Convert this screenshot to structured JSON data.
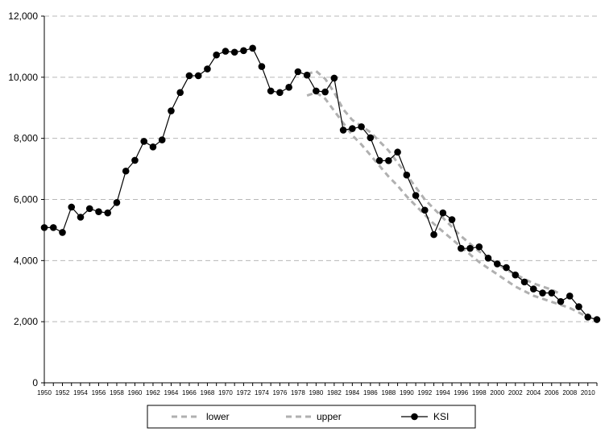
{
  "chart_data": {
    "type": "line",
    "grid": "horizontal-dashed",
    "legend_position": "bottom",
    "ylim": [
      0,
      12000
    ],
    "y_ticks": [
      0,
      2000,
      4000,
      6000,
      8000,
      10000,
      12000
    ],
    "y_tick_labels": [
      "0",
      "2,000",
      "4,000",
      "6,000",
      "8,000",
      "10,000",
      "12,000"
    ],
    "xlim": [
      1950,
      2011
    ],
    "x_tick_labels": [
      "1950",
      "1952",
      "1954",
      "1956",
      "1958",
      "1960",
      "1962",
      "1964",
      "1966",
      "1968",
      "1970",
      "1972",
      "1974",
      "1976",
      "1978",
      "1980",
      "1982",
      "1984",
      "1986",
      "1988",
      "1990",
      "1992",
      "1994",
      "1996",
      "1998",
      "2000",
      "2002",
      "2004",
      "2006",
      "2008",
      "2010"
    ],
    "series": [
      {
        "name": "lower",
        "style": "dashed",
        "color": "#b0b0b0",
        "x": [
          1979,
          1980,
          1981,
          1982,
          1983,
          1984,
          1985,
          1986,
          1987,
          1988,
          1989,
          1990,
          1991,
          1992,
          1993,
          1994,
          1995,
          1996,
          1997,
          1998,
          1999,
          2000,
          2001,
          2002,
          2003,
          2004,
          2005,
          2006,
          2007,
          2008,
          2009,
          2010
        ],
        "values": [
          9400,
          9500,
          9300,
          8900,
          8500,
          8100,
          7800,
          7450,
          7100,
          6750,
          6450,
          6100,
          5800,
          5500,
          5200,
          4950,
          4700,
          4450,
          4200,
          3950,
          3750,
          3550,
          3350,
          3150,
          3000,
          2850,
          2750,
          2650,
          2550,
          2450,
          2300,
          2150
        ]
      },
      {
        "name": "upper",
        "style": "dashed",
        "color": "#b0b0b0",
        "x": [
          1979,
          1980,
          1981,
          1982,
          1983,
          1984,
          1985,
          1986,
          1987,
          1988,
          1989,
          1990,
          1991,
          1992,
          1993,
          1994,
          1995,
          1996,
          1997,
          1998,
          1999,
          2000,
          2001,
          2002,
          2003,
          2004,
          2005,
          2006,
          2007
        ],
        "values": [
          10100,
          10200,
          9950,
          9500,
          8950,
          8600,
          8400,
          8200,
          7900,
          7600,
          7200,
          6800,
          6400,
          6000,
          5700,
          5400,
          5100,
          4800,
          4550,
          4300,
          4100,
          3900,
          3700,
          3550,
          3400,
          3250,
          3150,
          3050,
          2900
        ]
      },
      {
        "name": "KSI",
        "style": "solid-markers",
        "color": "#000000",
        "x": [
          1950,
          1951,
          1952,
          1953,
          1954,
          1955,
          1956,
          1957,
          1958,
          1959,
          1960,
          1961,
          1962,
          1963,
          1964,
          1965,
          1966,
          1967,
          1968,
          1969,
          1970,
          1971,
          1972,
          1973,
          1974,
          1975,
          1976,
          1977,
          1978,
          1979,
          1980,
          1981,
          1982,
          1983,
          1984,
          1985,
          1986,
          1987,
          1988,
          1989,
          1990,
          1991,
          1992,
          1993,
          1994,
          1995,
          1996,
          1997,
          1998,
          1999,
          2000,
          2001,
          2002,
          2003,
          2004,
          2005,
          2006,
          2007,
          2008,
          2009,
          2010,
          2011
        ],
        "values": [
          5080,
          5080,
          4920,
          5750,
          5420,
          5700,
          5600,
          5560,
          5900,
          6930,
          7280,
          7900,
          7720,
          7950,
          8900,
          9500,
          10050,
          10050,
          10270,
          10730,
          10850,
          10820,
          10870,
          10950,
          10350,
          9550,
          9500,
          9670,
          10180,
          10070,
          9550,
          9520,
          9970,
          8270,
          8320,
          8380,
          8020,
          7270,
          7270,
          7550,
          6800,
          6130,
          5650,
          4850,
          5560,
          5340,
          4400,
          4400,
          4450,
          4080,
          3890,
          3770,
          3530,
          3300,
          3070,
          2940,
          2940,
          2660,
          2840,
          2490,
          2150,
          2070
        ]
      }
    ],
    "legend": [
      {
        "label": "lower",
        "style": "dashed"
      },
      {
        "label": "upper",
        "style": "dashed"
      },
      {
        "label": "KSI",
        "style": "solid-markers"
      }
    ]
  }
}
